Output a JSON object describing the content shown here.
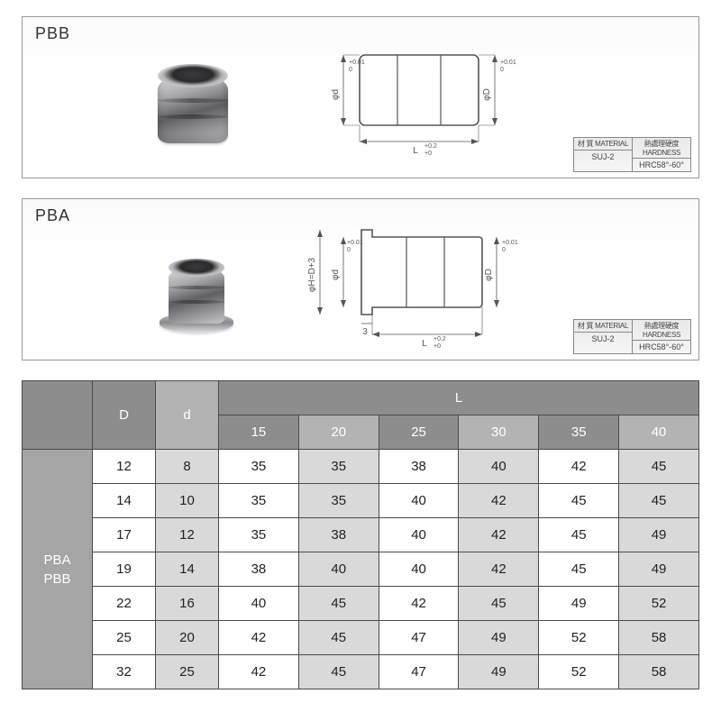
{
  "panel1": {
    "title": "PBB",
    "dims": {
      "d_label": "φd",
      "D_label": "φD",
      "L_label": "L",
      "tol_d": "+0.01 / 0",
      "tol_D": "+0.01 / 0",
      "tol_L": "+0.2 / +0"
    },
    "spec": {
      "material_h": "材 質 MATERIAL",
      "material_v": "SUJ-2",
      "hardness_h": "熱處理硬度 HARDNESS",
      "hardness_v": "HRC58°-60°"
    }
  },
  "panel2": {
    "title": "PBA",
    "dims": {
      "H_label": "φH=D+3",
      "d_label": "φd",
      "D_label": "φD",
      "L_label": "L",
      "flange": "3",
      "tol_d": "+0.01 / 0",
      "tol_D": "+0.01 / 0",
      "tol_L": "+0.2 / +0"
    },
    "spec": {
      "material_h": "材 質 MATERIAL",
      "material_v": "SUJ-2",
      "hardness_h": "熱處理硬度 HARDNESS",
      "hardness_v": "HRC58°-60°"
    }
  },
  "table": {
    "headers": {
      "model": "",
      "D": "D",
      "d": "d",
      "L": "L",
      "L_sub": [
        "15",
        "20",
        "25",
        "30",
        "35",
        "40"
      ]
    },
    "side_label": "PBA\nPBB",
    "rows": [
      {
        "D": "12",
        "d": "8",
        "L": [
          "35",
          "35",
          "38",
          "40",
          "42",
          "45"
        ]
      },
      {
        "D": "14",
        "d": "10",
        "L": [
          "35",
          "35",
          "40",
          "42",
          "45",
          "45"
        ]
      },
      {
        "D": "17",
        "d": "12",
        "L": [
          "35",
          "38",
          "40",
          "42",
          "45",
          "49"
        ]
      },
      {
        "D": "19",
        "d": "14",
        "L": [
          "38",
          "40",
          "40",
          "42",
          "45",
          "49"
        ]
      },
      {
        "D": "22",
        "d": "16",
        "L": [
          "40",
          "45",
          "42",
          "45",
          "49",
          "52"
        ]
      },
      {
        "D": "25",
        "d": "20",
        "L": [
          "42",
          "45",
          "47",
          "49",
          "52",
          "58"
        ]
      },
      {
        "D": "32",
        "d": "25",
        "L": [
          "42",
          "45",
          "47",
          "49",
          "52",
          "58"
        ]
      }
    ],
    "alt_cols": [
      1,
      3,
      5
    ]
  },
  "colors": {
    "border": "#999999",
    "table_border": "#4a4a4a",
    "header_dark": "#8d8d8d",
    "header_light": "#b3b3b3",
    "side": "#a5a5a5",
    "alt_cell": "#d9d9d9"
  }
}
